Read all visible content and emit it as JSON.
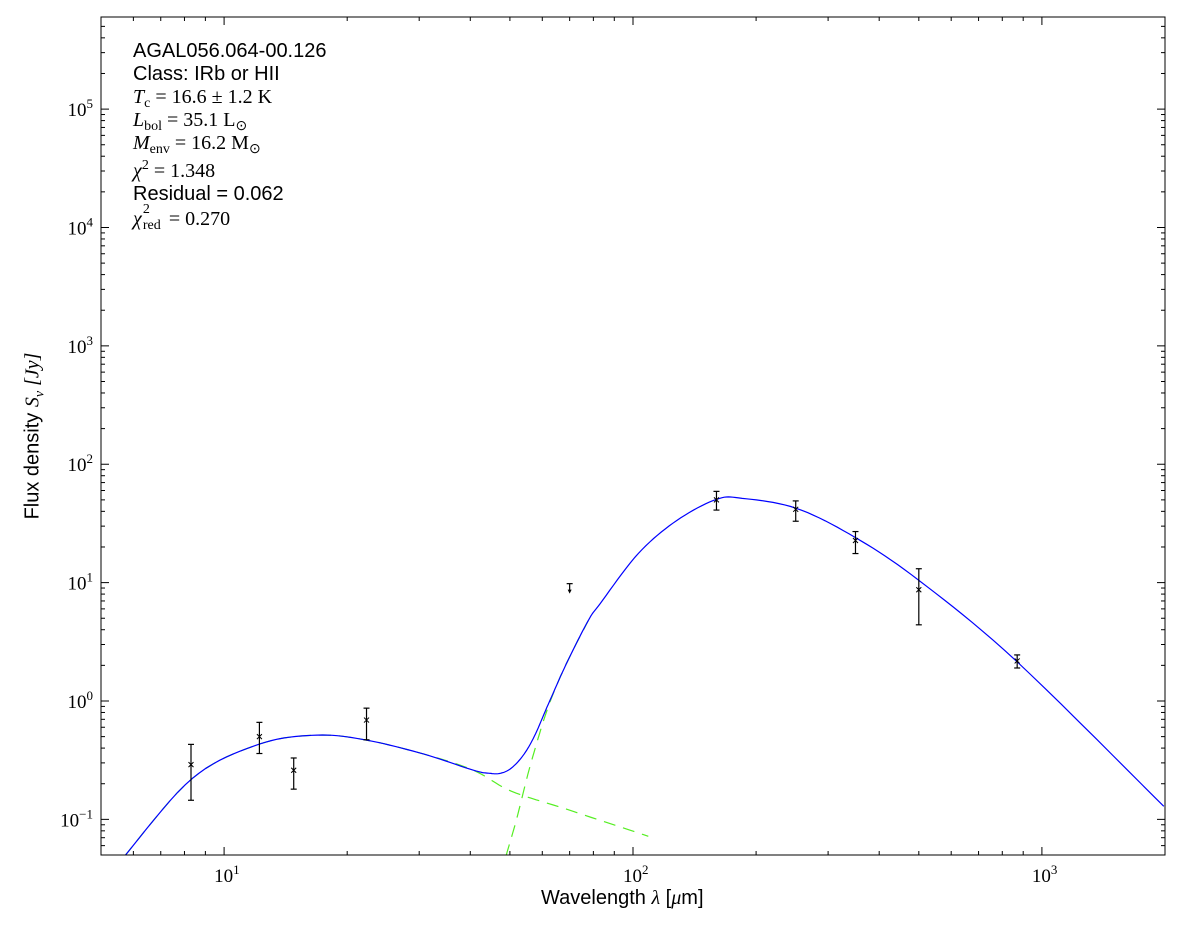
{
  "chart_data": {
    "type": "scatter",
    "x_scale": "log",
    "y_scale": "log",
    "xlim": [
      5,
      2000
    ],
    "ylim": [
      0.05,
      600000
    ],
    "xlabel": {
      "prefix": "Wavelength ",
      "symbol": "λ",
      "unit_open": " [",
      "unit_mu": "μ",
      "unit_rest": "m]"
    },
    "ylabel": {
      "prefix": "Flux density ",
      "symbol": "S",
      "sub": "ν",
      "unit": " [Jy]"
    },
    "x_ticks": [
      {
        "value": 10,
        "base": "10",
        "exp": "1"
      },
      {
        "value": 100,
        "base": "10",
        "exp": "2"
      },
      {
        "value": 1000,
        "base": "10",
        "exp": "3"
      }
    ],
    "y_ticks": [
      {
        "value": 0.1,
        "base": "10",
        "exp": "−1"
      },
      {
        "value": 1,
        "base": "10",
        "exp": "0"
      },
      {
        "value": 10,
        "base": "10",
        "exp": "1"
      },
      {
        "value": 100,
        "base": "10",
        "exp": "2"
      },
      {
        "value": 1000,
        "base": "10",
        "exp": "3"
      },
      {
        "value": 10000,
        "base": "10",
        "exp": "4"
      },
      {
        "value": 100000,
        "base": "10",
        "exp": "5"
      }
    ],
    "grid": false,
    "colors": {
      "total_fit": "#0000ff",
      "components": "#55ee22",
      "points": "#000000"
    },
    "points": [
      {
        "x": 8.3,
        "y": 0.29,
        "err_low": 0.145,
        "err_high": 0.43
      },
      {
        "x": 12.2,
        "y": 0.5,
        "err_low": 0.36,
        "err_high": 0.66
      },
      {
        "x": 14.8,
        "y": 0.26,
        "err_low": 0.18,
        "err_high": 0.33
      },
      {
        "x": 22.3,
        "y": 0.69,
        "err_low": 0.47,
        "err_high": 0.87
      },
      {
        "x": 160,
        "y": 50,
        "err_low": 41,
        "err_high": 59
      },
      {
        "x": 250,
        "y": 41.6,
        "err_low": 33,
        "err_high": 49
      },
      {
        "x": 350,
        "y": 22.7,
        "err_low": 17.6,
        "err_high": 27
      },
      {
        "x": 500,
        "y": 8.7,
        "err_low": 4.4,
        "err_high": 13.1
      },
      {
        "x": 870,
        "y": 2.18,
        "err_low": 1.9,
        "err_high": 2.45
      }
    ],
    "upper_limits": [
      {
        "x": 70,
        "y": 9.8
      }
    ],
    "total_fit": [
      [
        5.7,
        0.0486
      ],
      [
        8.36,
        0.222
      ],
      [
        12.2,
        0.432
      ],
      [
        16.9,
        0.515
      ],
      [
        22.3,
        0.467
      ],
      [
        30.8,
        0.356
      ],
      [
        40.7,
        0.26
      ],
      [
        44.6,
        0.245
      ],
      [
        47.4,
        0.245
      ],
      [
        50.4,
        0.271
      ],
      [
        53.9,
        0.348
      ],
      [
        57.4,
        0.505
      ],
      [
        62.1,
        0.944
      ],
      [
        68.7,
        2.06
      ],
      [
        77.7,
        4.77
      ],
      [
        83.1,
        6.64
      ],
      [
        103,
        17.6
      ],
      [
        128,
        33.5
      ],
      [
        160,
        50.5
      ],
      [
        185,
        51.5
      ],
      [
        251,
        42.4
      ],
      [
        350,
        24.0
      ],
      [
        501,
        10.4
      ],
      [
        865,
        2.18
      ],
      [
        1986,
        0.129
      ]
    ],
    "warm_component": [
      [
        5.7,
        0.0486
      ],
      [
        8.36,
        0.222
      ],
      [
        12.2,
        0.432
      ],
      [
        16.9,
        0.515
      ],
      [
        22.3,
        0.467
      ],
      [
        30.8,
        0.356
      ],
      [
        40.7,
        0.26
      ],
      [
        50.4,
        0.173
      ],
      [
        68.7,
        0.122
      ],
      [
        109,
        0.072
      ]
    ],
    "cold_component": [
      [
        48.9,
        0.049
      ],
      [
        51.9,
        0.1
      ],
      [
        56.3,
        0.3
      ],
      [
        62.1,
        0.9
      ],
      [
        68.7,
        2.06
      ],
      [
        77.7,
        4.77
      ]
    ]
  },
  "annotation": {
    "source": "AGAL056.064-00.126",
    "class": "Class: IRb or HII",
    "tc": {
      "sym": "T",
      "sub": "c",
      "rest": " = 16.6 ± 1.2 K"
    },
    "lbol": {
      "sym": "L",
      "sub": "bol",
      "rest": " = 35.1 L",
      "rest_sub": "⊙"
    },
    "menv": {
      "sym": "M",
      "sub": "env",
      "rest": " = 16.2 M",
      "rest_sub": "⊙"
    },
    "chi2": {
      "sym": "χ",
      "sup": "2",
      "rest": " = 1.348"
    },
    "residual": "Residual = 0.062",
    "chi2red": {
      "sym": "χ",
      "sup": "2",
      "sub": "red",
      "rest": " = 0.270"
    }
  }
}
